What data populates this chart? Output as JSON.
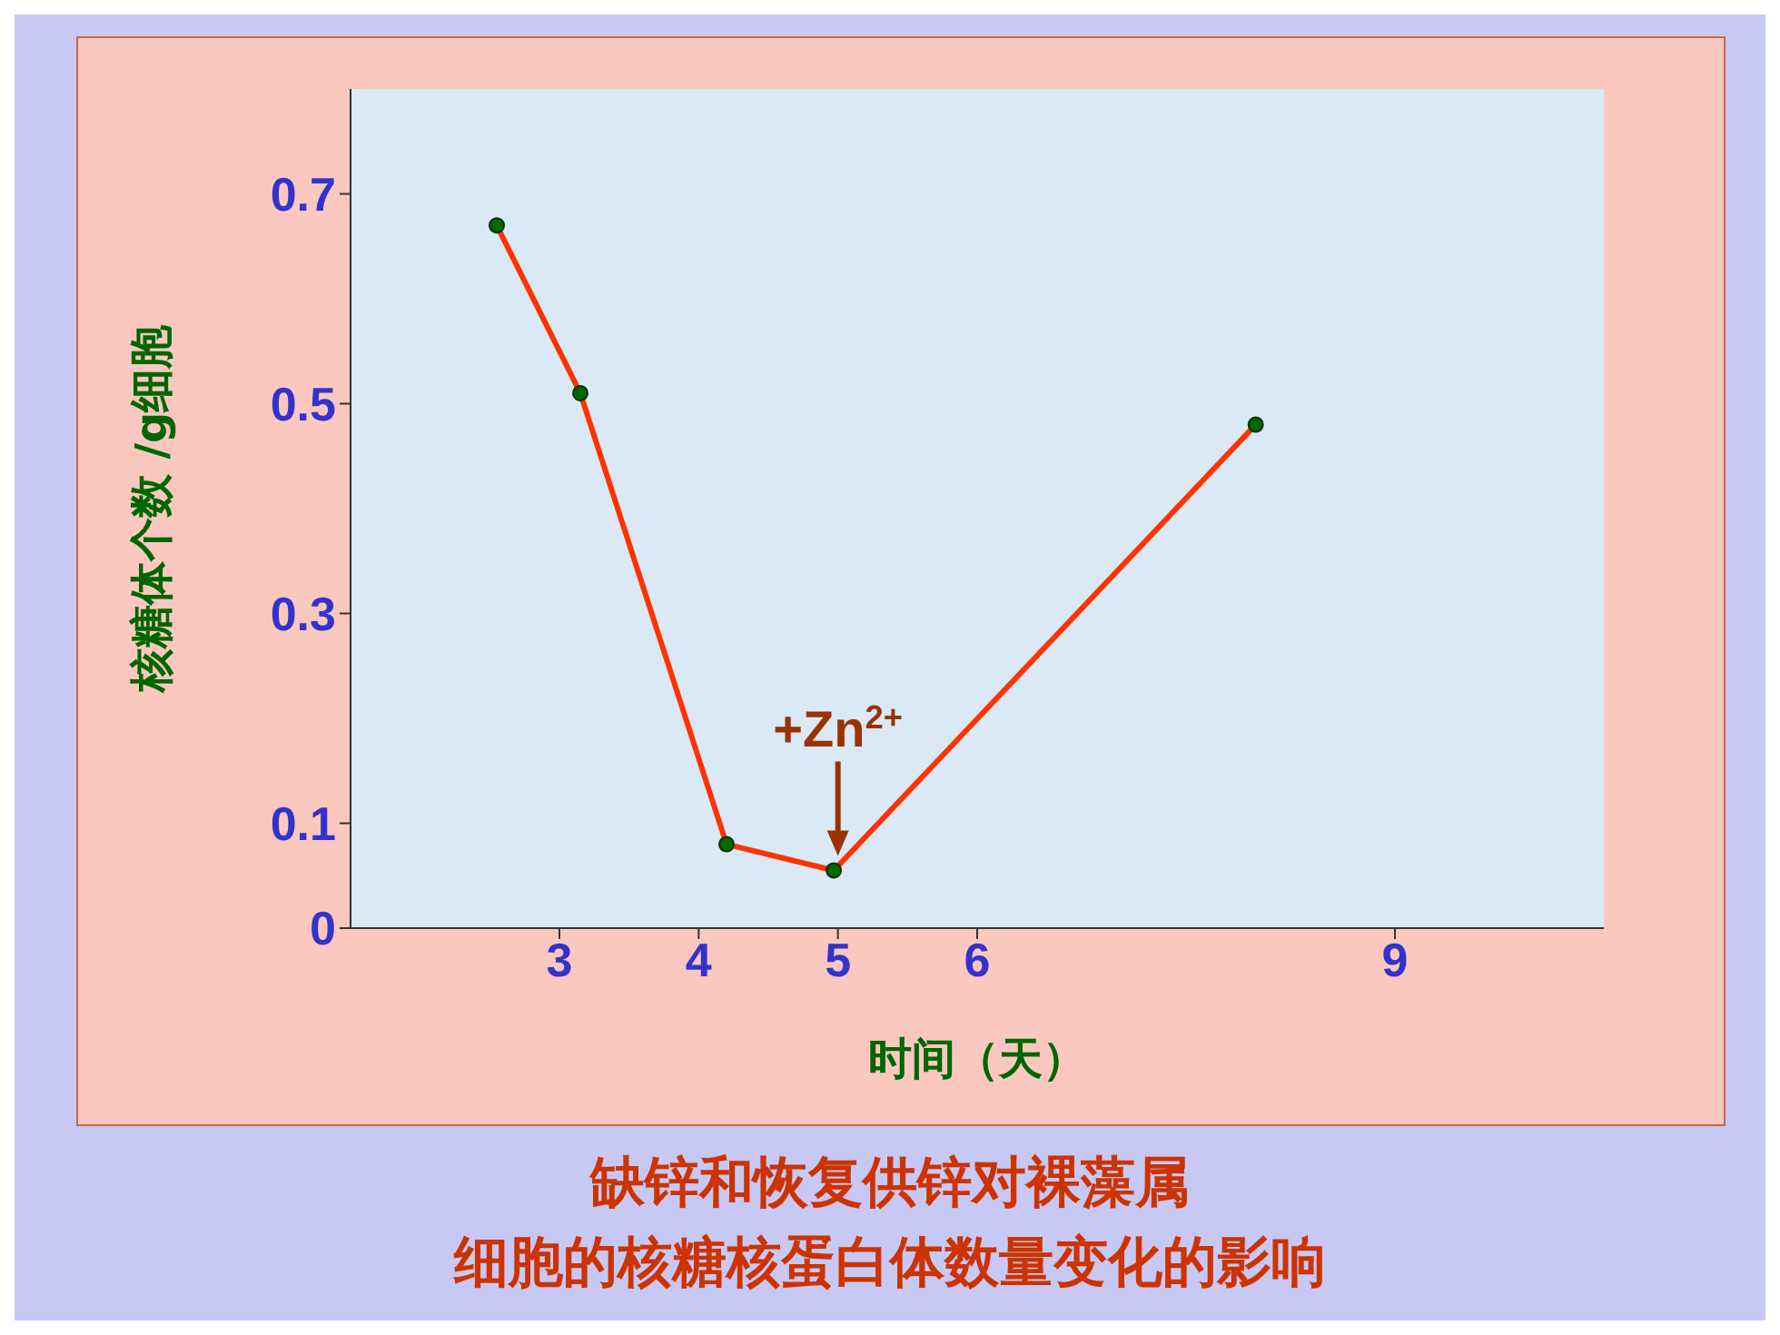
{
  "chart_data": {
    "type": "line",
    "title": "缺锌和恢复供锌对裸藻属",
    "subtitle": "细胞的核糖核蛋白体数量变化的影响",
    "xlabel": "时间（天）",
    "ylabel": "核糖体个数 /g细胞",
    "x": [
      2.55,
      3.15,
      4.2,
      4.97,
      8
    ],
    "series": [
      {
        "color": "#ff3300",
        "values": [
          0.67,
          0.51,
          0.08,
          0.055,
          0.48
        ]
      }
    ],
    "xlim": [
      1.5,
      10.5
    ],
    "xticks": [
      3,
      4,
      5,
      6,
      9
    ],
    "ylim": [
      0,
      0.8
    ],
    "yticks": [
      0,
      0.1,
      0.3,
      0.5,
      0.7
    ],
    "annotations": [
      {
        "text": "+Zn$^{2+}$",
        "x": 5,
        "y": 0.055
      }
    ],
    "marker": "circle",
    "line_style": "solid",
    "grid": false,
    "legend": false
  }
}
